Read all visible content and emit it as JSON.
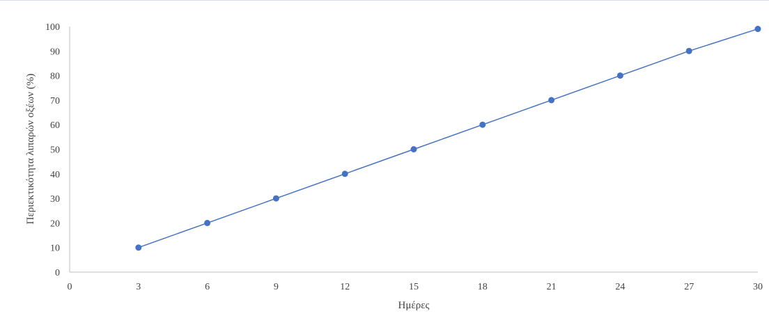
{
  "chart_data": {
    "type": "scatter",
    "title": "",
    "xlabel": "Ημέρες",
    "ylabel": "Περιεκτικότητα λιπαρών οξέων (%)",
    "xlim": [
      0,
      30
    ],
    "ylim": [
      0,
      100
    ],
    "x_ticks": [
      0,
      3,
      6,
      9,
      12,
      15,
      18,
      21,
      24,
      27,
      30
    ],
    "y_ticks": [
      0,
      10,
      20,
      30,
      40,
      50,
      60,
      70,
      80,
      90,
      100
    ],
    "grid": false,
    "legend": "none",
    "series": [
      {
        "x": [
          3,
          6,
          9,
          12,
          15,
          18,
          21,
          24,
          27,
          30
        ],
        "y": [
          10,
          20,
          30,
          40,
          50,
          60,
          70,
          80,
          90,
          99
        ],
        "marker_color": "#4472c4",
        "line_color": "#4472c4",
        "connected": true
      }
    ]
  }
}
